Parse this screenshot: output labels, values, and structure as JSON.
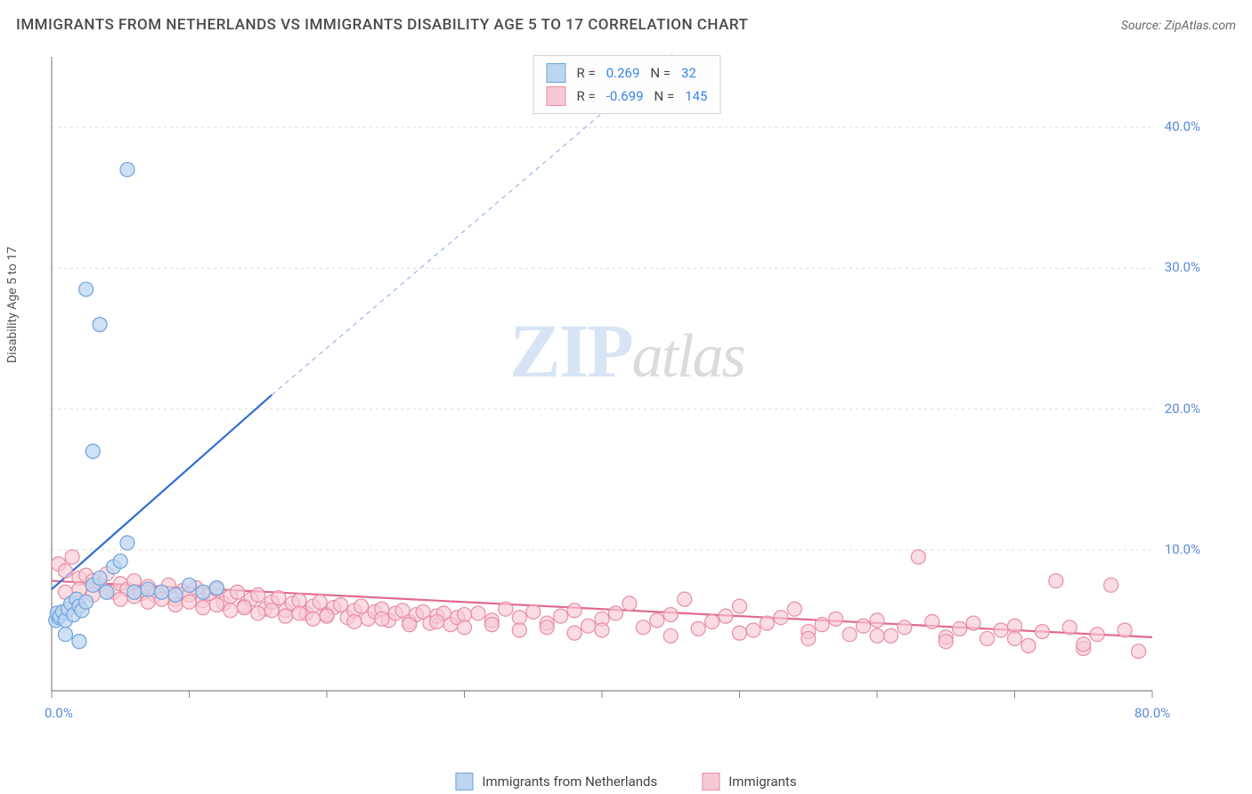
{
  "title": "IMMIGRANTS FROM NETHERLANDS VS IMMIGRANTS DISABILITY AGE 5 TO 17 CORRELATION CHART",
  "source": "Source: ZipAtlas.com",
  "y_axis_label": "Disability Age 5 to 17",
  "chart": {
    "type": "scatter",
    "background_color": "#ffffff",
    "grid_color": "#dcdcdc",
    "axis_color": "#888888",
    "x_domain": [
      0,
      80
    ],
    "y_domain": [
      0,
      45
    ],
    "x_ticks": [
      0,
      10,
      20,
      30,
      40,
      50,
      60,
      70,
      80
    ],
    "x_tick_labels": {
      "0": "0.0%",
      "80": "80.0%"
    },
    "y_ticks": [
      10,
      20,
      30,
      40
    ],
    "y_tick_labels": {
      "10": "10.0%",
      "20": "20.0%",
      "30": "30.0%",
      "40": "40.0%"
    },
    "tick_label_color": "#5a8ad8",
    "tick_label_fontsize": 15
  },
  "series": {
    "blue": {
      "label": "Immigrants from Netherlands",
      "marker_fill": "#bdd5f0",
      "marker_stroke": "#6fa3dd",
      "marker_radius": 8,
      "marker_opacity": 0.75,
      "R": "0.269",
      "N": "32",
      "trend": {
        "color": "#2f6fd0",
        "width": 2.2,
        "x1": 0,
        "y1": 7.2,
        "x2": 16,
        "y2": 21,
        "x2_dash": 46,
        "y2_dash": 46
      },
      "points": [
        [
          0.3,
          5.0
        ],
        [
          0.5,
          5.2
        ],
        [
          0.4,
          5.5
        ],
        [
          0.6,
          5.3
        ],
        [
          0.8,
          5.6
        ],
        [
          1.0,
          5.0
        ],
        [
          1.2,
          5.8
        ],
        [
          1.4,
          6.2
        ],
        [
          1.6,
          5.4
        ],
        [
          1.8,
          6.5
        ],
        [
          2.0,
          6.0
        ],
        [
          2.2,
          5.7
        ],
        [
          2.5,
          6.3
        ],
        [
          3.0,
          7.5
        ],
        [
          3.5,
          8.0
        ],
        [
          4.0,
          7.0
        ],
        [
          4.5,
          8.8
        ],
        [
          5.0,
          9.2
        ],
        [
          5.5,
          10.5
        ],
        [
          6.0,
          7.0
        ],
        [
          7.0,
          7.2
        ],
        [
          8.0,
          7.0
        ],
        [
          9.0,
          6.8
        ],
        [
          10.0,
          7.5
        ],
        [
          11.0,
          7.0
        ],
        [
          12.0,
          7.3
        ],
        [
          2.0,
          3.5
        ],
        [
          1.0,
          4.0
        ],
        [
          3.0,
          17.0
        ],
        [
          3.5,
          26.0
        ],
        [
          2.5,
          28.5
        ],
        [
          5.5,
          37.0
        ]
      ]
    },
    "pink": {
      "label": "Immigrants",
      "marker_fill": "#f7c9d4",
      "marker_stroke": "#e88da4",
      "marker_radius": 8,
      "marker_opacity": 0.65,
      "R": "-0.699",
      "N": "145",
      "trend": {
        "color": "#e06a8a",
        "width": 2.2,
        "x1": 0,
        "y1": 7.8,
        "x2": 80,
        "y2": 3.8
      },
      "points": [
        [
          0.5,
          9.0
        ],
        [
          1.0,
          8.5
        ],
        [
          1.5,
          9.5
        ],
        [
          2.0,
          8.0
        ],
        [
          2.5,
          8.2
        ],
        [
          3.0,
          7.8
        ],
        [
          3.5,
          7.5
        ],
        [
          4.0,
          8.3
        ],
        [
          4.5,
          7.0
        ],
        [
          5.0,
          7.6
        ],
        [
          5.5,
          7.2
        ],
        [
          6.0,
          7.8
        ],
        [
          6.5,
          6.9
        ],
        [
          7.0,
          7.4
        ],
        [
          7.5,
          6.8
        ],
        [
          8.0,
          7.0
        ],
        [
          8.5,
          7.5
        ],
        [
          9.0,
          6.5
        ],
        [
          9.5,
          7.1
        ],
        [
          10.0,
          6.8
        ],
        [
          10.5,
          7.3
        ],
        [
          11.0,
          6.4
        ],
        [
          11.5,
          6.9
        ],
        [
          12.0,
          7.2
        ],
        [
          12.5,
          6.2
        ],
        [
          13.0,
          6.7
        ],
        [
          13.5,
          7.0
        ],
        [
          14.0,
          6.0
        ],
        [
          14.5,
          6.5
        ],
        [
          15.0,
          6.8
        ],
        [
          15.5,
          5.8
        ],
        [
          16.0,
          6.3
        ],
        [
          16.5,
          6.6
        ],
        [
          17.0,
          5.7
        ],
        [
          17.5,
          6.2
        ],
        [
          18.0,
          6.4
        ],
        [
          18.5,
          5.5
        ],
        [
          19.0,
          6.0
        ],
        [
          19.5,
          6.3
        ],
        [
          20.0,
          5.4
        ],
        [
          20.5,
          5.9
        ],
        [
          21.0,
          6.1
        ],
        [
          21.5,
          5.2
        ],
        [
          22.0,
          5.7
        ],
        [
          22.5,
          6.0
        ],
        [
          23.0,
          5.1
        ],
        [
          23.5,
          5.6
        ],
        [
          24.0,
          5.8
        ],
        [
          24.5,
          5.0
        ],
        [
          25.0,
          5.5
        ],
        [
          25.5,
          5.7
        ],
        [
          26.0,
          4.9
        ],
        [
          26.5,
          5.4
        ],
        [
          27.0,
          5.6
        ],
        [
          27.5,
          4.8
        ],
        [
          28.0,
          5.3
        ],
        [
          28.5,
          5.5
        ],
        [
          29.0,
          4.7
        ],
        [
          29.5,
          5.2
        ],
        [
          30.0,
          5.4
        ],
        [
          31.0,
          5.5
        ],
        [
          32.0,
          5.0
        ],
        [
          33.0,
          5.8
        ],
        [
          34.0,
          5.2
        ],
        [
          35.0,
          5.6
        ],
        [
          36.0,
          4.8
        ],
        [
          37.0,
          5.3
        ],
        [
          38.0,
          5.7
        ],
        [
          39.0,
          4.6
        ],
        [
          40.0,
          5.1
        ],
        [
          41.0,
          5.5
        ],
        [
          42.0,
          6.2
        ],
        [
          43.0,
          4.5
        ],
        [
          44.0,
          5.0
        ],
        [
          45.0,
          5.4
        ],
        [
          46.0,
          6.5
        ],
        [
          47.0,
          4.4
        ],
        [
          48.0,
          4.9
        ],
        [
          49.0,
          5.3
        ],
        [
          50.0,
          6.0
        ],
        [
          51.0,
          4.3
        ],
        [
          52.0,
          4.8
        ],
        [
          53.0,
          5.2
        ],
        [
          54.0,
          5.8
        ],
        [
          55.0,
          4.2
        ],
        [
          56.0,
          4.7
        ],
        [
          57.0,
          5.1
        ],
        [
          58.0,
          4.0
        ],
        [
          59.0,
          4.6
        ],
        [
          60.0,
          5.0
        ],
        [
          61.0,
          3.9
        ],
        [
          62.0,
          4.5
        ],
        [
          63.0,
          9.5
        ],
        [
          64.0,
          4.9
        ],
        [
          65.0,
          3.8
        ],
        [
          66.0,
          4.4
        ],
        [
          67.0,
          4.8
        ],
        [
          68.0,
          3.7
        ],
        [
          69.0,
          4.3
        ],
        [
          70.0,
          4.6
        ],
        [
          71.0,
          3.2
        ],
        [
          72.0,
          4.2
        ],
        [
          73.0,
          7.8
        ],
        [
          74.0,
          4.5
        ],
        [
          75.0,
          3.0
        ],
        [
          76.0,
          4.0
        ],
        [
          77.0,
          7.5
        ],
        [
          78.0,
          4.3
        ],
        [
          79.0,
          2.8
        ],
        [
          1.0,
          7.0
        ],
        [
          2.0,
          7.2
        ],
        [
          3.0,
          6.8
        ],
        [
          4.0,
          7.0
        ],
        [
          5.0,
          6.5
        ],
        [
          6.0,
          6.7
        ],
        [
          7.0,
          6.3
        ],
        [
          8.0,
          6.5
        ],
        [
          9.0,
          6.1
        ],
        [
          10.0,
          6.3
        ],
        [
          11.0,
          5.9
        ],
        [
          12.0,
          6.1
        ],
        [
          13.0,
          5.7
        ],
        [
          14.0,
          5.9
        ],
        [
          15.0,
          5.5
        ],
        [
          16.0,
          5.7
        ],
        [
          17.0,
          5.3
        ],
        [
          18.0,
          5.5
        ],
        [
          19.0,
          5.1
        ],
        [
          20.0,
          5.3
        ],
        [
          22.0,
          4.9
        ],
        [
          24.0,
          5.1
        ],
        [
          26.0,
          4.7
        ],
        [
          28.0,
          4.9
        ],
        [
          30.0,
          4.5
        ],
        [
          32.0,
          4.7
        ],
        [
          34.0,
          4.3
        ],
        [
          36.0,
          4.5
        ],
        [
          38.0,
          4.1
        ],
        [
          40.0,
          4.3
        ],
        [
          45.0,
          3.9
        ],
        [
          50.0,
          4.1
        ],
        [
          55.0,
          3.7
        ],
        [
          60.0,
          3.9
        ],
        [
          65.0,
          3.5
        ],
        [
          70.0,
          3.7
        ],
        [
          75.0,
          3.3
        ]
      ]
    }
  },
  "legend_top": {
    "R_label": "R =",
    "N_label": "N ="
  },
  "legend_bottom": {
    "items": [
      "blue",
      "pink"
    ]
  },
  "watermark": {
    "zip": "ZIP",
    "atlas": "atlas"
  }
}
